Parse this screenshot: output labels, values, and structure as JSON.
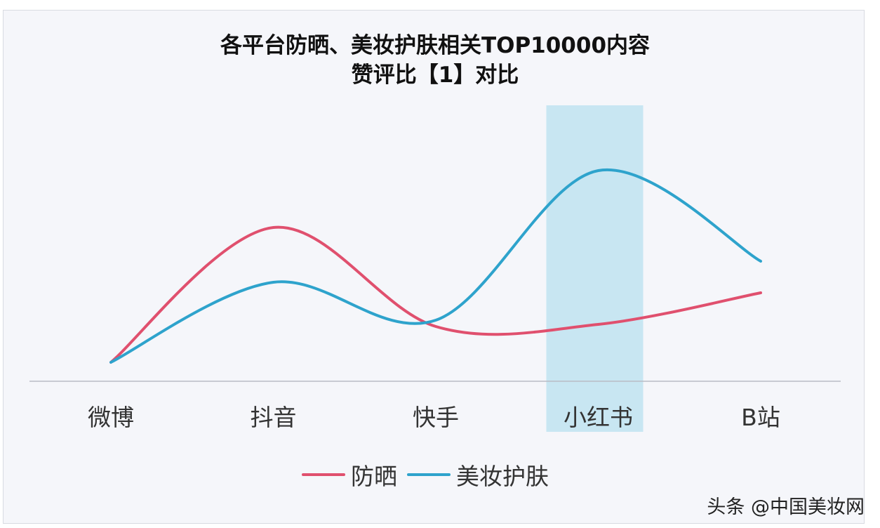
{
  "chart_data": {
    "type": "line",
    "title": "各平台防晒、美妆护肤相关TOP10000内容",
    "subtitle": "赞评比【1】对比",
    "categories": [
      "微博",
      "抖音",
      "快手",
      "小红书",
      "B站"
    ],
    "series": [
      {
        "name": "防晒",
        "color": "#e0506e",
        "values": [
          9,
          73,
          26,
          27,
          42
        ]
      },
      {
        "name": "美妆护肤",
        "color": "#2ea3cc",
        "values": [
          9,
          47,
          29,
          100,
          57
        ]
      }
    ],
    "highlight_category": "小红书",
    "highlight_color": "#c8e6f2",
    "y_axis_shown": false,
    "grid": false,
    "legend_position": "bottom",
    "smooth": true
  },
  "watermark": "头条 @中国美妆网"
}
